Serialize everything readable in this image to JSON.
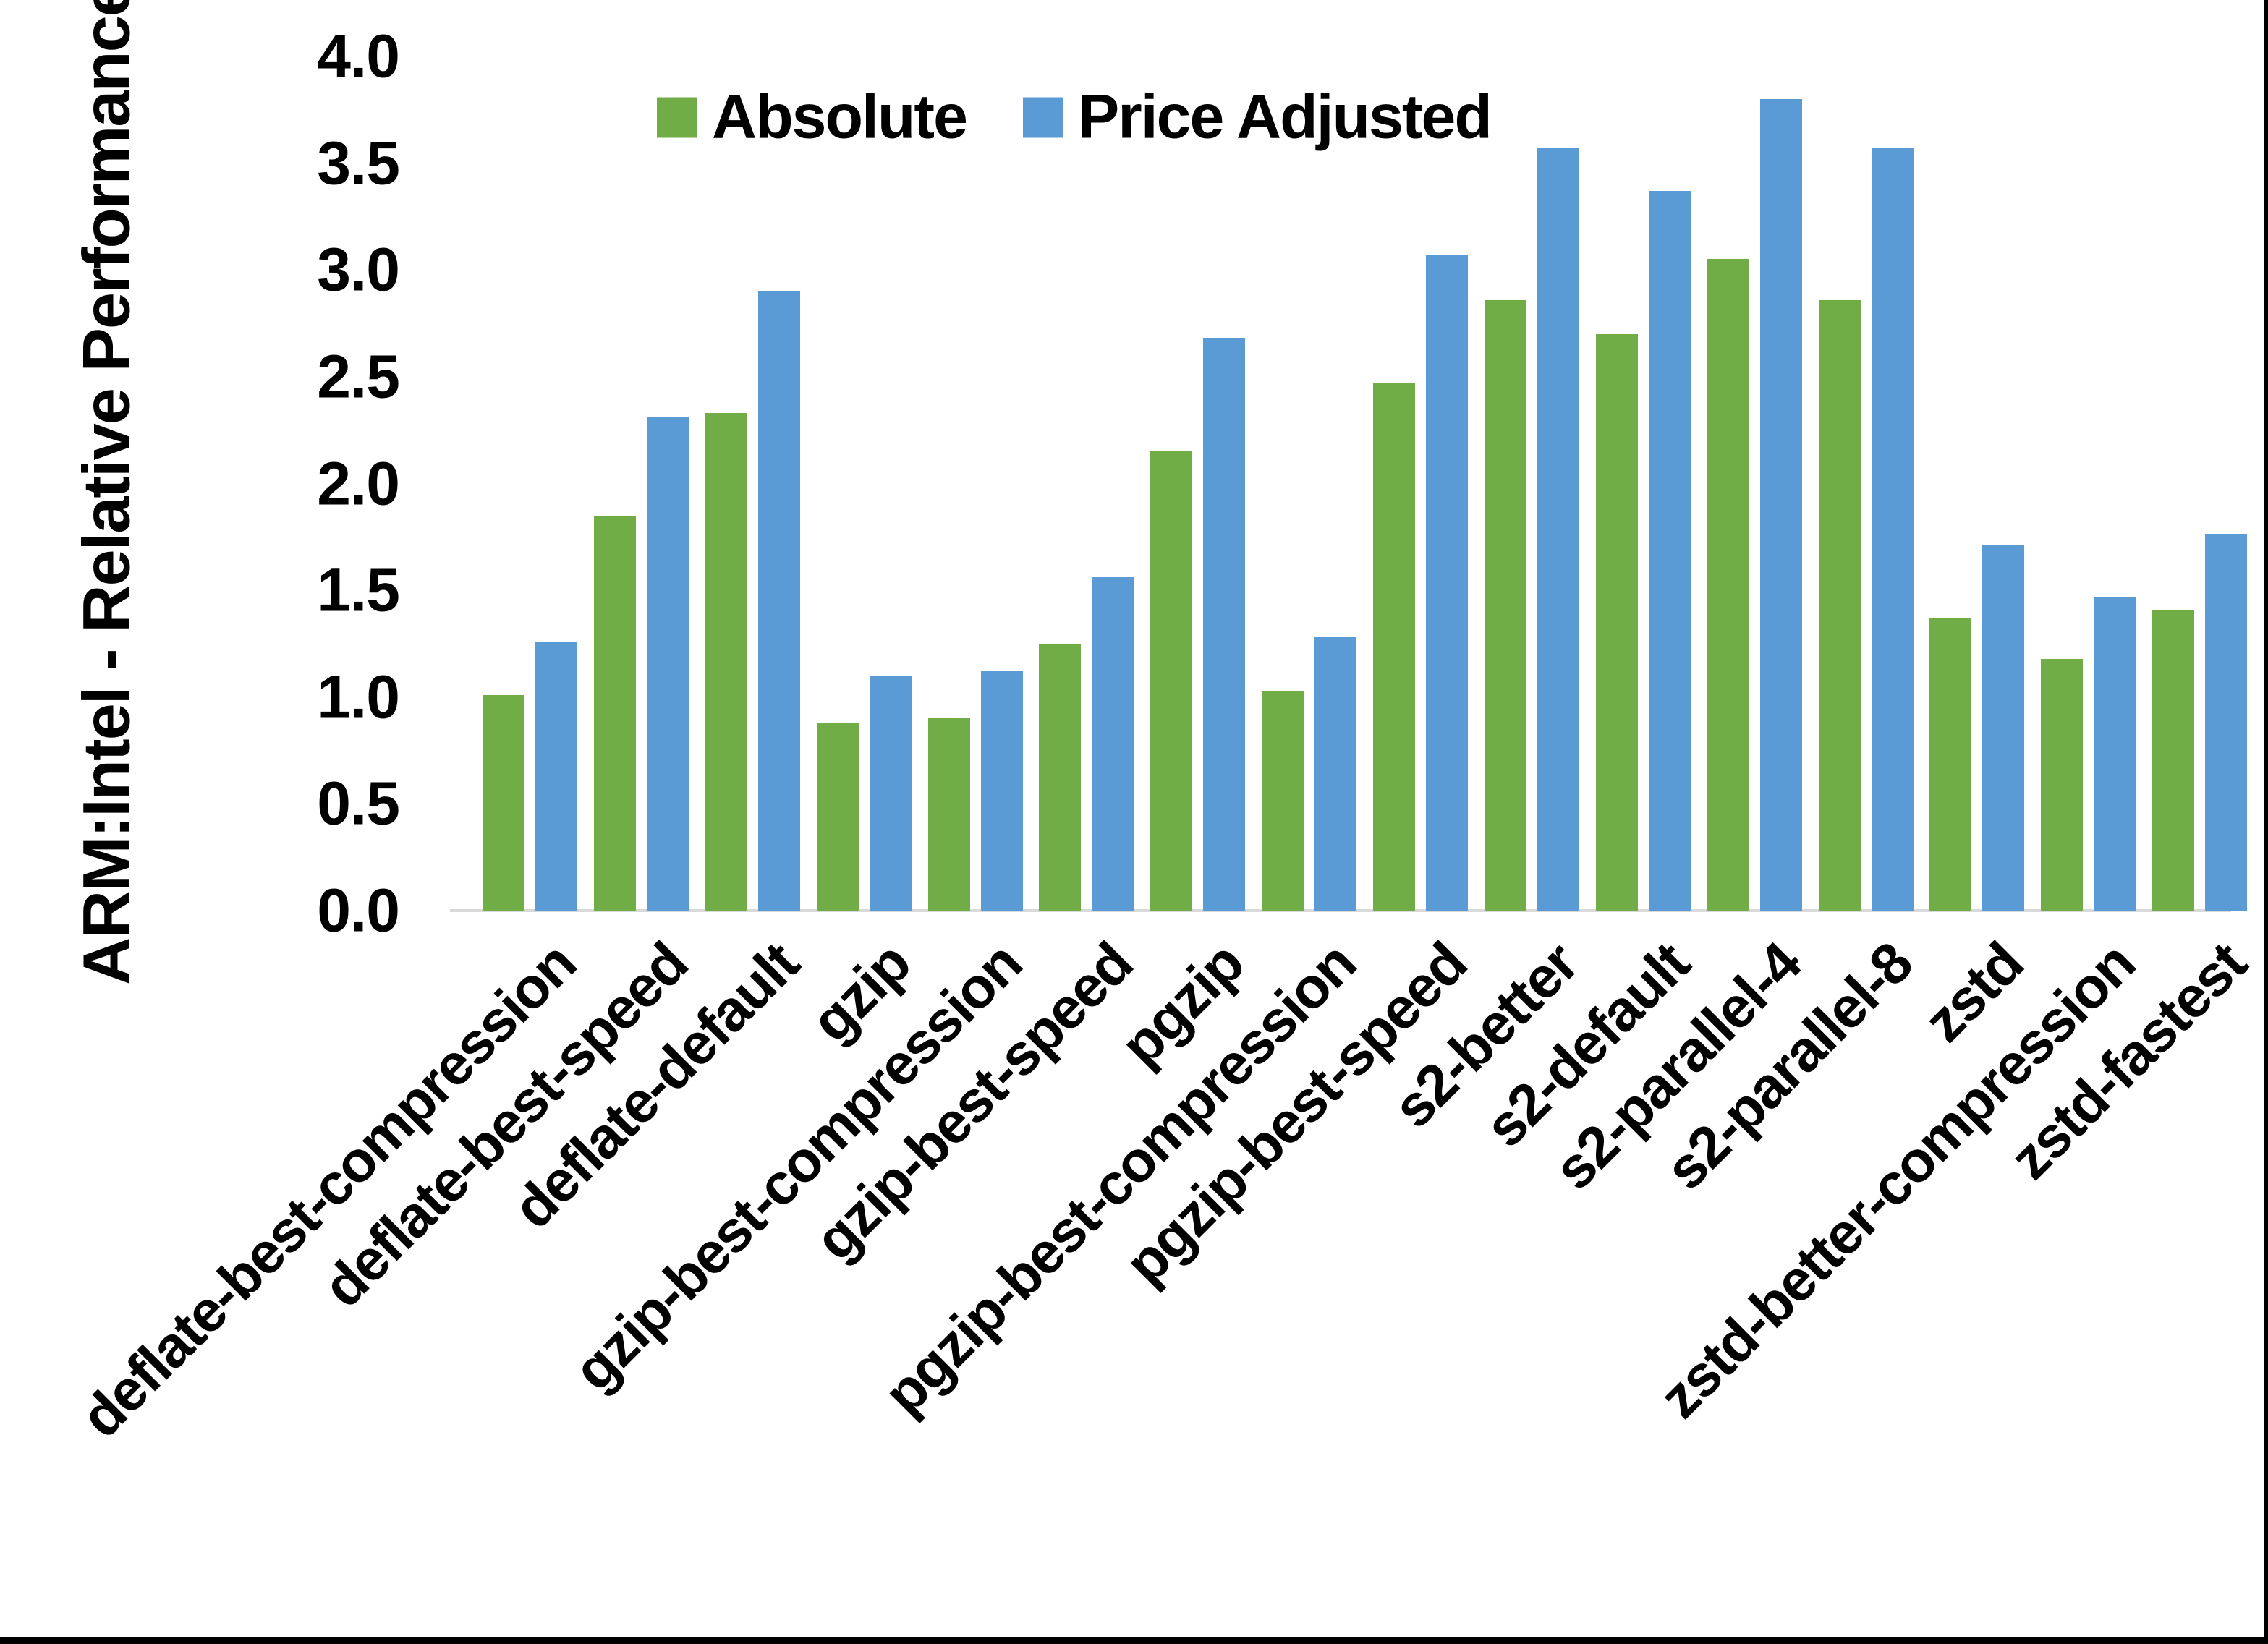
{
  "chart_data": {
    "type": "bar",
    "title": "",
    "xlabel": "",
    "ylabel": "ARM:Intel - Relative Performance",
    "ylim": [
      0.0,
      4.0
    ],
    "ytick_step": 0.5,
    "yticks": [
      "0.0",
      "0.5",
      "1.0",
      "1.5",
      "2.0",
      "2.5",
      "3.0",
      "3.5",
      "4.0"
    ],
    "grid": false,
    "legend_position": "top",
    "categories": [
      "deflate-best-compression",
      "deflate-best-speed",
      "deflate-default",
      "gzip",
      "gzip-best-compression",
      "gzip-best-speed",
      "pgzip",
      "pgzip-best-compression",
      "pgzip-best-speed",
      "s2-better",
      "s2-default",
      "s2-parallel-4",
      "s2-parallel-8",
      "zstd",
      "zstd-better-compression",
      "zstd-fastest"
    ],
    "series": [
      {
        "name": "Absolute",
        "color": "#70AD47",
        "values": [
          1.01,
          1.85,
          2.33,
          0.88,
          0.9,
          1.25,
          2.15,
          1.03,
          2.47,
          2.86,
          2.7,
          3.05,
          2.86,
          1.37,
          1.18,
          1.41
        ]
      },
      {
        "name": "Price Adjusted",
        "color": "#5B9BD5",
        "values": [
          1.26,
          2.31,
          2.9,
          1.1,
          1.12,
          1.56,
          2.68,
          1.28,
          3.07,
          3.57,
          3.37,
          3.8,
          3.57,
          1.71,
          1.47,
          1.76
        ]
      }
    ]
  },
  "colors": {
    "background": "#FFFFFF",
    "axis_line": "#D9D9D9",
    "text": "#000000",
    "border": "#000000",
    "series_absolute": "#70AD47",
    "series_price_adjusted": "#5B9BD5"
  }
}
